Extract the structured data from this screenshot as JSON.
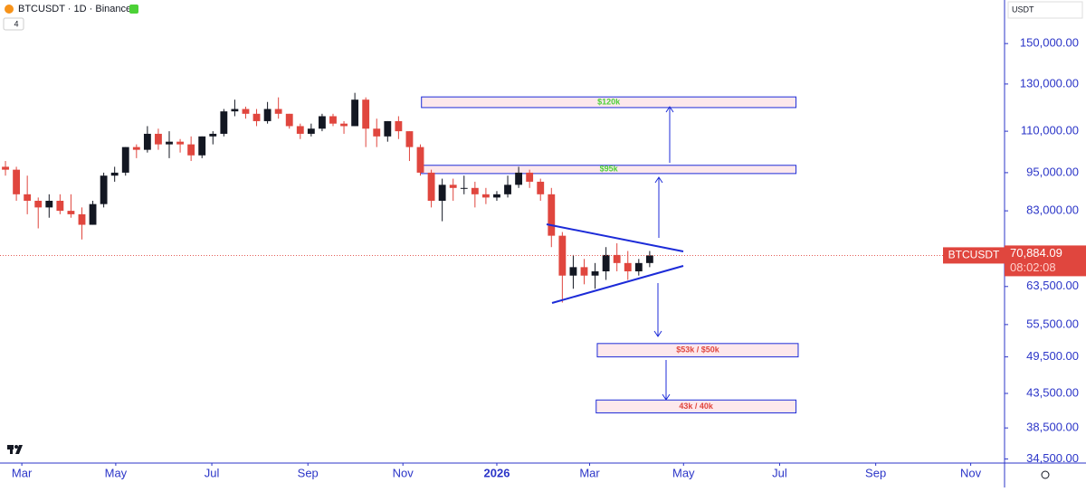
{
  "header": {
    "title": "BTCUSDT · 1D · Binance",
    "indicator_count": "4"
  },
  "chart_data": {
    "type": "candlestick",
    "log_scale": true,
    "currency": "USDT",
    "up_color": "#131722",
    "down_color": "#e0463e",
    "axis_color": "#2b35c8",
    "xlim": [
      0,
      92
    ],
    "ylim": [
      34000,
      175000
    ],
    "xticks": [
      {
        "value": 2.0,
        "label": "Mar"
      },
      {
        "value": 10.6,
        "label": "May"
      },
      {
        "value": 19.4,
        "label": "Jul"
      },
      {
        "value": 28.2,
        "label": "Sep"
      },
      {
        "value": 36.9,
        "label": "Nov"
      },
      {
        "value": 45.5,
        "label": "2026",
        "bold": true
      },
      {
        "value": 54.0,
        "label": "Mar"
      },
      {
        "value": 62.6,
        "label": "May"
      },
      {
        "value": 71.4,
        "label": "Jul"
      },
      {
        "value": 80.2,
        "label": "Sep"
      },
      {
        "value": 88.9,
        "label": "Nov"
      }
    ],
    "yticks": [
      {
        "value": 150000,
        "label": "150,000.00"
      },
      {
        "value": 130000,
        "label": "130,000.00"
      },
      {
        "value": 110000,
        "label": "110,000.00"
      },
      {
        "value": 95000,
        "label": "95,000.00"
      },
      {
        "value": 83000,
        "label": "83,000.00"
      },
      {
        "value": 63500,
        "label": "63,500.00"
      },
      {
        "value": 55500,
        "label": "55,500.00"
      },
      {
        "value": 49500,
        "label": "49,500.00"
      },
      {
        "value": 43500,
        "label": "43,500.00"
      },
      {
        "value": 38500,
        "label": "38,500.00"
      },
      {
        "value": 34500,
        "label": "34,500.00"
      }
    ],
    "x": [
      0.5,
      1.5,
      2.5,
      3.5,
      4.5,
      5.5,
      6.5,
      7.5,
      8.5,
      9.5,
      10.5,
      11.5,
      12.5,
      13.5,
      14.5,
      15.5,
      16.5,
      17.5,
      18.5,
      19.5,
      20.5,
      21.5,
      22.5,
      23.5,
      24.5,
      25.5,
      26.5,
      27.5,
      28.5,
      29.5,
      30.5,
      31.5,
      32.5,
      33.5,
      34.5,
      35.5,
      36.5,
      37.5,
      38.5,
      39.5,
      40.5,
      41.5,
      42.5,
      43.5,
      44.5,
      45.5,
      46.5,
      47.5,
      48.5,
      49.5,
      50.5,
      51.5,
      52.5,
      53.5,
      54.5,
      55.5,
      56.5,
      57.5,
      58.5,
      59.5
    ],
    "open": [
      97000,
      96000,
      88000,
      86000,
      84000,
      86000,
      83000,
      82000,
      79000,
      85000,
      94000,
      95000,
      104000,
      103000,
      109000,
      105000,
      106000,
      105000,
      101000,
      108000,
      109000,
      118000,
      119000,
      117000,
      114000,
      119000,
      117000,
      112000,
      109000,
      111000,
      116000,
      113000,
      112000,
      123000,
      111000,
      108000,
      114000,
      110000,
      104000,
      95000,
      86000,
      91000,
      90000,
      90000,
      88000,
      87000,
      88000,
      91000,
      95000,
      92000,
      88000,
      76000,
      66000,
      68000,
      66000,
      67000,
      71000,
      69000,
      67000,
      69000
    ],
    "high": [
      99000,
      97000,
      94000,
      87000,
      88000,
      88000,
      88000,
      84000,
      86000,
      95000,
      97000,
      104000,
      105000,
      112000,
      111000,
      110000,
      107000,
      108000,
      108000,
      110000,
      119000,
      123000,
      120000,
      119000,
      122000,
      124000,
      117000,
      113000,
      113000,
      117000,
      117000,
      114000,
      126000,
      124000,
      115000,
      114000,
      116000,
      110000,
      105000,
      96000,
      93000,
      93000,
      94000,
      92000,
      90000,
      89000,
      94000,
      97000,
      96000,
      93000,
      90000,
      77000,
      71000,
      70000,
      69000,
      73000,
      74000,
      72000,
      70000,
      72000
    ],
    "low": [
      94000,
      86000,
      82000,
      78000,
      81000,
      82000,
      81000,
      75000,
      79000,
      84000,
      92000,
      94000,
      100000,
      102000,
      103000,
      100000,
      102000,
      99000,
      100000,
      105000,
      108000,
      116000,
      115000,
      112000,
      113000,
      115000,
      111000,
      107000,
      108000,
      110000,
      112000,
      109000,
      112000,
      104000,
      104000,
      106000,
      107000,
      99000,
      94000,
      84000,
      80000,
      86000,
      88000,
      84000,
      85000,
      86000,
      87000,
      90000,
      90000,
      86000,
      73000,
      60000,
      63000,
      64000,
      63000,
      65000,
      67000,
      65000,
      66000,
      68000
    ],
    "close": [
      96000,
      88000,
      86000,
      84000,
      86000,
      83000,
      82000,
      79000,
      85000,
      94000,
      95000,
      104000,
      103000,
      109000,
      105000,
      106000,
      105000,
      101000,
      108000,
      109000,
      118000,
      119000,
      117000,
      114000,
      119000,
      117000,
      112000,
      109000,
      111000,
      116000,
      113000,
      112000,
      123000,
      111000,
      108000,
      114000,
      110000,
      104000,
      95000,
      86000,
      91000,
      90000,
      90000,
      88000,
      87000,
      88000,
      91000,
      95000,
      92000,
      88000,
      76000,
      66000,
      68000,
      66000,
      67000,
      71000,
      69000,
      67000,
      69000,
      70884.09
    ],
    "last_price": {
      "value": 70884.09,
      "label": "70,884.09"
    },
    "symbol": "BTCUSDT",
    "countdown": "08:02:08",
    "zones": [
      {
        "label": "$120k",
        "low": 119600,
        "high": 124200,
        "x0": 38.6,
        "x1": 72.9,
        "label_color": "#4cd137"
      },
      {
        "label": "$95k",
        "low": 94700,
        "high": 97500,
        "x0": 38.6,
        "x1": 72.9,
        "label_color": "#4cd137"
      },
      {
        "label": "$53k / $50k",
        "low": 49500,
        "high": 51900,
        "x0": 54.7,
        "x1": 73.1,
        "label_color": "#e0463e"
      },
      {
        "label": "43k / 40k",
        "low": 40600,
        "high": 42500,
        "x0": 54.6,
        "x1": 72.9,
        "label_color": "#e0463e"
      }
    ]
  }
}
